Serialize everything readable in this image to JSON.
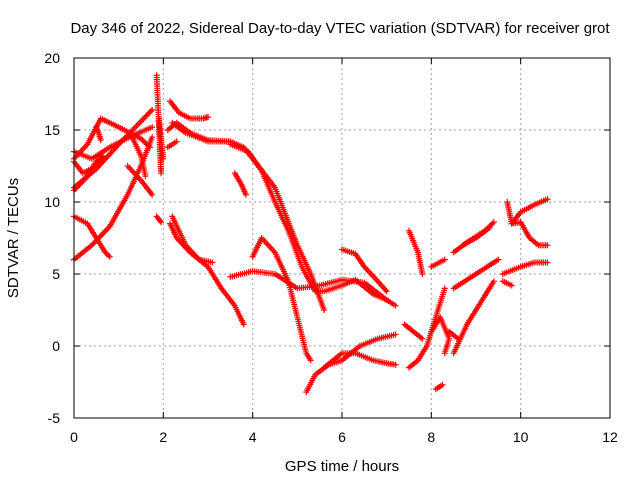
{
  "chart_data": {
    "type": "scatter",
    "title": "Day 346 of 2022, Sidereal Day-to-day VTEC variation (SDTVAR) for receiver grot",
    "xlabel": "GPS time / hours",
    "ylabel": "SDTVAR / TECUs",
    "xlim": [
      0,
      12
    ],
    "ylim": [
      -5,
      20
    ],
    "xticks": [
      0,
      2,
      4,
      6,
      8,
      10,
      12
    ],
    "yticks": [
      -5,
      0,
      5,
      10,
      15,
      20
    ],
    "grid": true,
    "marker": "plus",
    "color": "#ff0000",
    "tracks": [
      {
        "points": [
          [
            0.0,
            13.0
          ],
          [
            0.3,
            14.0
          ],
          [
            0.6,
            15.8
          ],
          [
            1.0,
            15.2
          ],
          [
            1.5,
            14.4
          ],
          [
            1.7,
            13.8
          ]
        ]
      },
      {
        "points": [
          [
            0.0,
            11.0
          ],
          [
            0.5,
            12.3
          ],
          [
            1.0,
            14.0
          ],
          [
            1.5,
            15.6
          ],
          [
            1.75,
            16.4
          ]
        ]
      },
      {
        "points": [
          [
            0.0,
            13.5
          ],
          [
            0.4,
            13.0
          ],
          [
            0.8,
            13.8
          ],
          [
            1.3,
            14.6
          ],
          [
            1.75,
            15.2
          ]
        ]
      },
      {
        "points": [
          [
            0.0,
            10.8
          ],
          [
            0.25,
            11.6
          ],
          [
            0.5,
            12.8
          ],
          [
            0.65,
            13.2
          ]
        ]
      },
      {
        "points": [
          [
            0.0,
            6.0
          ],
          [
            0.4,
            7.0
          ],
          [
            0.8,
            8.3
          ],
          [
            1.2,
            10.5
          ],
          [
            1.5,
            12.5
          ],
          [
            1.75,
            14.5
          ]
        ]
      },
      {
        "points": [
          [
            0.0,
            9.0
          ],
          [
            0.3,
            8.5
          ],
          [
            0.5,
            7.5
          ],
          [
            0.7,
            6.5
          ],
          [
            0.8,
            6.2
          ]
        ]
      },
      {
        "points": [
          [
            1.2,
            12.5
          ],
          [
            1.5,
            11.5
          ],
          [
            1.75,
            10.5
          ]
        ]
      },
      {
        "points": [
          [
            0.0,
            12.8
          ],
          [
            0.2,
            12.0
          ],
          [
            0.5,
            12.5
          ],
          [
            0.7,
            13.0
          ]
        ]
      },
      {
        "points": [
          [
            1.3,
            14.5
          ],
          [
            1.5,
            13.2
          ],
          [
            1.6,
            11.8
          ]
        ]
      },
      {
        "points": [
          [
            0.5,
            15.2
          ],
          [
            0.55,
            14.8
          ],
          [
            0.6,
            14.3
          ]
        ]
      },
      {
        "points": [
          [
            1.85,
            18.8
          ],
          [
            1.95,
            12.0
          ],
          [
            1.9,
            15.8
          ],
          [
            1.95,
            14.4
          ],
          [
            2.0,
            13.0
          ]
        ]
      },
      {
        "points": [
          [
            1.85,
            9.0
          ],
          [
            1.95,
            8.6
          ]
        ]
      },
      {
        "points": [
          [
            2.15,
            17.0
          ],
          [
            2.35,
            16.2
          ],
          [
            2.6,
            15.8
          ],
          [
            2.9,
            15.8
          ],
          [
            3.0,
            15.9
          ]
        ]
      },
      {
        "points": [
          [
            2.2,
            15.5
          ],
          [
            2.5,
            14.8
          ],
          [
            3.0,
            14.2
          ],
          [
            3.5,
            14.2
          ],
          [
            3.8,
            13.8
          ],
          [
            4.0,
            13.0
          ],
          [
            4.5,
            11.0
          ],
          [
            5.0,
            7.0
          ],
          [
            5.3,
            5.0
          ],
          [
            5.6,
            2.5
          ]
        ]
      },
      {
        "points": [
          [
            2.1,
            15.0
          ],
          [
            2.3,
            15.5
          ],
          [
            2.6,
            14.8
          ],
          [
            3.0,
            14.3
          ],
          [
            3.5,
            14.2
          ]
        ]
      },
      {
        "points": [
          [
            2.1,
            13.8
          ],
          [
            2.3,
            14.2
          ]
        ]
      },
      {
        "points": [
          [
            3.5,
            14.0
          ],
          [
            3.9,
            13.5
          ],
          [
            4.2,
            12.2
          ],
          [
            4.5,
            10.0
          ],
          [
            4.8,
            8.0
          ],
          [
            5.1,
            5.5
          ],
          [
            5.4,
            3.8
          ],
          [
            5.6,
            3.8
          ],
          [
            6.0,
            4.2
          ],
          [
            6.3,
            4.6
          ],
          [
            6.7,
            3.6
          ],
          [
            7.0,
            3.2
          ],
          [
            7.2,
            2.8
          ]
        ]
      },
      {
        "points": [
          [
            3.6,
            12.0
          ],
          [
            3.75,
            11.2
          ],
          [
            3.85,
            10.5
          ]
        ]
      },
      {
        "points": [
          [
            2.15,
            8.5
          ],
          [
            2.3,
            7.5
          ],
          [
            2.6,
            6.5
          ],
          [
            3.0,
            5.5
          ],
          [
            3.3,
            4.0
          ],
          [
            3.6,
            2.8
          ],
          [
            3.8,
            1.5
          ]
        ]
      },
      {
        "points": [
          [
            2.2,
            9.0
          ],
          [
            2.5,
            7.0
          ],
          [
            2.8,
            6.0
          ],
          [
            3.1,
            5.8
          ]
        ]
      },
      {
        "points": [
          [
            3.5,
            4.8
          ],
          [
            4.0,
            5.2
          ],
          [
            4.5,
            5.0
          ],
          [
            5.0,
            4.0
          ],
          [
            5.5,
            4.2
          ],
          [
            6.0,
            4.6
          ],
          [
            6.5,
            4.4
          ],
          [
            7.0,
            3.2
          ]
        ]
      },
      {
        "points": [
          [
            4.0,
            6.2
          ],
          [
            4.2,
            7.5
          ],
          [
            4.5,
            6.5
          ],
          [
            4.8,
            4.5
          ],
          [
            5.0,
            2.0
          ],
          [
            5.2,
            -0.5
          ],
          [
            5.3,
            -1.0
          ]
        ]
      },
      {
        "points": [
          [
            5.2,
            -3.2
          ],
          [
            5.4,
            -2.0
          ],
          [
            5.7,
            -1.3
          ],
          [
            6.0,
            -1.0
          ],
          [
            6.4,
            0.0
          ],
          [
            6.8,
            0.5
          ],
          [
            7.2,
            0.8
          ]
        ]
      },
      {
        "points": [
          [
            5.6,
            -1.5
          ],
          [
            6.0,
            -0.5
          ],
          [
            6.3,
            -0.5
          ],
          [
            6.7,
            -1.0
          ],
          [
            7.0,
            -1.2
          ],
          [
            7.2,
            -1.3
          ]
        ]
      },
      {
        "points": [
          [
            6.0,
            6.7
          ],
          [
            6.3,
            6.4
          ],
          [
            6.5,
            5.5
          ],
          [
            6.8,
            4.5
          ],
          [
            7.0,
            3.8
          ]
        ]
      },
      {
        "points": [
          [
            7.5,
            8.0
          ],
          [
            7.7,
            6.5
          ],
          [
            7.8,
            5.0
          ]
        ]
      },
      {
        "points": [
          [
            7.4,
            1.5
          ],
          [
            7.6,
            1.0
          ],
          [
            7.8,
            0.5
          ]
        ]
      },
      {
        "points": [
          [
            7.5,
            -1.5
          ],
          [
            7.7,
            -1.0
          ],
          [
            7.9,
            0.0
          ],
          [
            8.1,
            2.0
          ],
          [
            8.3,
            4.0
          ]
        ]
      },
      {
        "points": [
          [
            8.0,
            1.0
          ],
          [
            8.2,
            2.0
          ],
          [
            8.4,
            0.5
          ],
          [
            8.3,
            -0.5
          ]
        ]
      },
      {
        "points": [
          [
            8.1,
            -3.0
          ],
          [
            8.25,
            -2.7
          ]
        ]
      },
      {
        "points": [
          [
            8.0,
            5.5
          ],
          [
            8.3,
            6.0
          ]
        ]
      },
      {
        "points": [
          [
            8.5,
            4.0
          ],
          [
            9.0,
            5.0
          ],
          [
            9.5,
            6.0
          ]
        ]
      },
      {
        "points": [
          [
            8.5,
            6.5
          ],
          [
            8.8,
            7.2
          ],
          [
            9.2,
            8.0
          ],
          [
            9.4,
            8.6
          ]
        ]
      },
      {
        "points": [
          [
            8.7,
            7.0
          ],
          [
            9.0,
            7.5
          ],
          [
            9.3,
            8.2
          ]
        ]
      },
      {
        "points": [
          [
            8.5,
            -0.5
          ],
          [
            8.8,
            1.5
          ],
          [
            9.1,
            3.0
          ],
          [
            9.4,
            4.5
          ]
        ]
      },
      {
        "points": [
          [
            8.4,
            1.0
          ],
          [
            8.6,
            0.5
          ]
        ]
      },
      {
        "points": [
          [
            9.8,
            8.5
          ],
          [
            10.0,
            9.3
          ],
          [
            10.3,
            9.8
          ],
          [
            10.6,
            10.2
          ]
        ]
      },
      {
        "points": [
          [
            9.7,
            10.0
          ],
          [
            9.8,
            8.5
          ],
          [
            10.0,
            8.6
          ],
          [
            10.2,
            7.5
          ],
          [
            10.4,
            7.0
          ],
          [
            10.6,
            7.0
          ]
        ]
      },
      {
        "points": [
          [
            9.6,
            5.0
          ],
          [
            10.0,
            5.5
          ],
          [
            10.3,
            5.8
          ],
          [
            10.6,
            5.8
          ]
        ]
      },
      {
        "points": [
          [
            9.6,
            4.5
          ],
          [
            9.8,
            4.2
          ]
        ]
      }
    ]
  }
}
